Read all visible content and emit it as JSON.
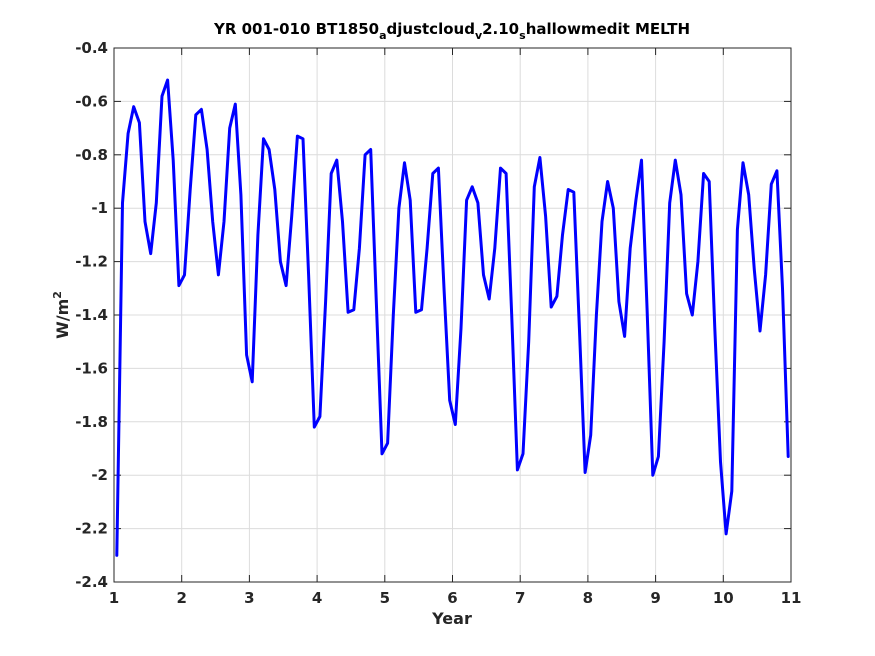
{
  "chart_data": {
    "type": "line",
    "title_parts": {
      "a": "YR 001-010 BT1850",
      "b": "a",
      "c": "djustcloud",
      "d": "v",
      "e": "2.10",
      "f": "s",
      "g": "hallowmedit MELTH"
    },
    "xlabel": "Year",
    "ylabel": "W/m",
    "ylabel_sup": "2",
    "xlim": [
      1,
      11
    ],
    "ylim": [
      -2.4,
      -0.4
    ],
    "xticks": [
      1,
      2,
      3,
      4,
      5,
      6,
      7,
      8,
      9,
      10,
      11
    ],
    "yticks": [
      -0.4,
      -0.6,
      -0.8,
      -1,
      -1.2,
      -1.4,
      -1.6,
      -1.8,
      -2,
      -2.2,
      -2.4
    ],
    "xtick_labels": [
      "1",
      "2",
      "3",
      "4",
      "5",
      "6",
      "7",
      "8",
      "9",
      "10",
      "11"
    ],
    "ytick_labels": [
      "-0.4",
      "-0.6",
      "-0.8",
      "-1",
      "-1.2",
      "-1.4",
      "-1.6",
      "-1.8",
      "-2",
      "-2.2",
      "-2.4"
    ],
    "grid": true,
    "series": [
      {
        "color": "#0000ff",
        "values": [
          -2.3,
          -0.98,
          -0.72,
          -0.62,
          -0.68,
          -1.05,
          -1.17,
          -0.98,
          -0.58,
          -0.52,
          -0.82,
          -1.29,
          -1.25,
          -0.93,
          -0.65,
          -0.63,
          -0.78,
          -1.05,
          -1.25,
          -1.05,
          -0.7,
          -0.61,
          -0.95,
          -1.55,
          -1.65,
          -1.1,
          -0.74,
          -0.78,
          -0.93,
          -1.2,
          -1.29,
          -1.03,
          -0.73,
          -0.74,
          -1.25,
          -1.82,
          -1.78,
          -1.35,
          -0.87,
          -0.82,
          -1.05,
          -1.39,
          -1.38,
          -1.15,
          -0.8,
          -0.78,
          -1.35,
          -1.92,
          -1.88,
          -1.4,
          -1.0,
          -0.83,
          -0.97,
          -1.39,
          -1.38,
          -1.15,
          -0.87,
          -0.85,
          -1.3,
          -1.72,
          -1.81,
          -1.45,
          -0.97,
          -0.92,
          -0.98,
          -1.25,
          -1.34,
          -1.15,
          -0.85,
          -0.87,
          -1.4,
          -1.98,
          -1.92,
          -1.5,
          -0.92,
          -0.81,
          -1.03,
          -1.37,
          -1.33,
          -1.1,
          -0.93,
          -0.94,
          -1.45,
          -1.99,
          -1.85,
          -1.4,
          -1.05,
          -0.9,
          -1.0,
          -1.35,
          -1.48,
          -1.15,
          -0.97,
          -0.82,
          -1.38,
          -2.0,
          -1.93,
          -1.5,
          -0.98,
          -0.82,
          -0.95,
          -1.32,
          -1.4,
          -1.2,
          -0.87,
          -0.9,
          -1.45,
          -1.95,
          -2.22,
          -2.06,
          -1.08,
          -0.83,
          -0.95,
          -1.23,
          -1.46,
          -1.25,
          -0.91,
          -0.86,
          -1.3,
          -1.93
        ]
      }
    ]
  }
}
